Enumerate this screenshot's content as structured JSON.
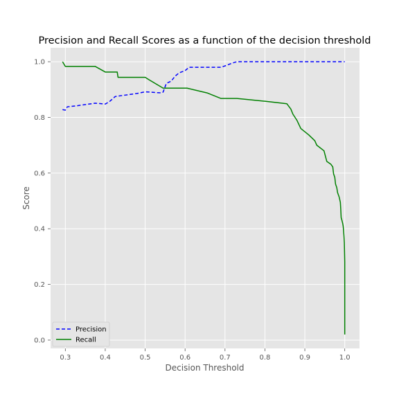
{
  "chart_data": {
    "type": "line",
    "title": "Precision and Recall Scores as a function of the decision threshold",
    "xlabel": "Decision Threshold",
    "ylabel": "Score",
    "xlim": [
      0.263,
      1.037
    ],
    "ylim": [
      -0.03,
      1.05
    ],
    "x_ticks": [
      "0.3",
      "0.4",
      "0.5",
      "0.6",
      "0.7",
      "0.8",
      "0.9",
      "1.0"
    ],
    "x_tick_values": [
      0.3,
      0.4,
      0.5,
      0.6,
      0.7,
      0.8,
      0.9,
      1.0
    ],
    "y_ticks": [
      "0.0",
      "0.2",
      "0.4",
      "0.6",
      "0.8",
      "1.0"
    ],
    "y_tick_values": [
      0.0,
      0.2,
      0.4,
      0.6,
      0.8,
      1.0
    ],
    "grid": true,
    "legend_position": "lower-left",
    "background_color": "#e5e5e5",
    "series": [
      {
        "name": "Precision",
        "color": "#0000ff",
        "style": "dashed",
        "points": [
          [
            0.293,
            0.828
          ],
          [
            0.3,
            0.826
          ],
          [
            0.305,
            0.838
          ],
          [
            0.33,
            0.842
          ],
          [
            0.35,
            0.846
          ],
          [
            0.375,
            0.851
          ],
          [
            0.4,
            0.848
          ],
          [
            0.41,
            0.856
          ],
          [
            0.425,
            0.875
          ],
          [
            0.45,
            0.88
          ],
          [
            0.48,
            0.886
          ],
          [
            0.5,
            0.892
          ],
          [
            0.54,
            0.888
          ],
          [
            0.545,
            0.891
          ],
          [
            0.553,
            0.922
          ],
          [
            0.565,
            0.93
          ],
          [
            0.575,
            0.948
          ],
          [
            0.585,
            0.96
          ],
          [
            0.6,
            0.968
          ],
          [
            0.61,
            0.98
          ],
          [
            0.65,
            0.98
          ],
          [
            0.69,
            0.98
          ],
          [
            0.7,
            0.985
          ],
          [
            0.72,
            0.996
          ],
          [
            0.73,
            1.0
          ],
          [
            0.8,
            1.0
          ],
          [
            0.9,
            1.0
          ],
          [
            1.0,
            1.0
          ]
        ]
      },
      {
        "name": "Recall",
        "color": "#008000",
        "style": "solid",
        "points": [
          [
            0.293,
            1.0
          ],
          [
            0.3,
            0.983
          ],
          [
            0.375,
            0.983
          ],
          [
            0.4,
            0.963
          ],
          [
            0.43,
            0.963
          ],
          [
            0.432,
            0.944
          ],
          [
            0.5,
            0.944
          ],
          [
            0.51,
            0.935
          ],
          [
            0.545,
            0.905
          ],
          [
            0.605,
            0.905
          ],
          [
            0.655,
            0.888
          ],
          [
            0.69,
            0.868
          ],
          [
            0.73,
            0.868
          ],
          [
            0.8,
            0.858
          ],
          [
            0.855,
            0.849
          ],
          [
            0.865,
            0.83
          ],
          [
            0.87,
            0.812
          ],
          [
            0.88,
            0.79
          ],
          [
            0.89,
            0.76
          ],
          [
            0.91,
            0.737
          ],
          [
            0.925,
            0.716
          ],
          [
            0.93,
            0.7
          ],
          [
            0.948,
            0.68
          ],
          [
            0.955,
            0.642
          ],
          [
            0.965,
            0.632
          ],
          [
            0.97,
            0.622
          ],
          [
            0.972,
            0.597
          ],
          [
            0.975,
            0.585
          ],
          [
            0.977,
            0.56
          ],
          [
            0.98,
            0.548
          ],
          [
            0.982,
            0.53
          ],
          [
            0.986,
            0.514
          ],
          [
            0.989,
            0.495
          ],
          [
            0.99,
            0.47
          ],
          [
            0.991,
            0.44
          ],
          [
            0.993,
            0.43
          ],
          [
            0.995,
            0.418
          ],
          [
            0.996,
            0.41
          ],
          [
            0.997,
            0.395
          ],
          [
            0.998,
            0.375
          ],
          [
            0.999,
            0.35
          ],
          [
            1.0,
            0.28
          ],
          [
            1.0,
            0.18
          ],
          [
            1.0,
            0.12
          ],
          [
            1.0,
            0.09
          ],
          [
            1.0,
            0.02
          ]
        ]
      }
    ]
  }
}
